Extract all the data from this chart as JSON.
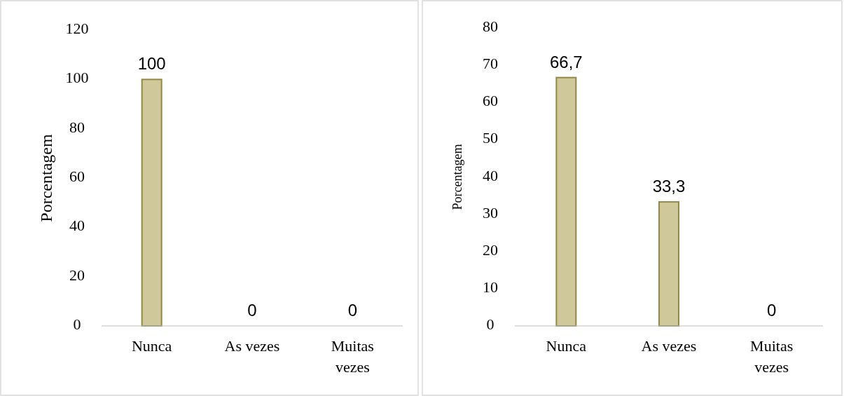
{
  "chart_data": [
    {
      "type": "bar",
      "ylabel": "Porcentagem",
      "categories": [
        "Nunca",
        "As vezes",
        "Muitas vezes"
      ],
      "values": [
        100,
        0,
        0
      ],
      "value_labels": [
        "100",
        "0",
        "0"
      ],
      "color": "#cfc89a",
      "ylim": [
        0,
        120
      ],
      "yticks": [
        0,
        20,
        40,
        60,
        80,
        100,
        120
      ]
    },
    {
      "type": "bar",
      "ylabel": "Porcentagem",
      "categories": [
        "Nunca",
        "As vezes",
        "Muitas vezes"
      ],
      "values": [
        66.7,
        33.3,
        0
      ],
      "value_labels": [
        "66,7",
        "33,3",
        "0"
      ],
      "color": "#cfc89a",
      "ylim": [
        0,
        80
      ],
      "yticks": [
        0,
        10,
        20,
        30,
        40,
        50,
        60,
        70,
        80
      ]
    }
  ]
}
